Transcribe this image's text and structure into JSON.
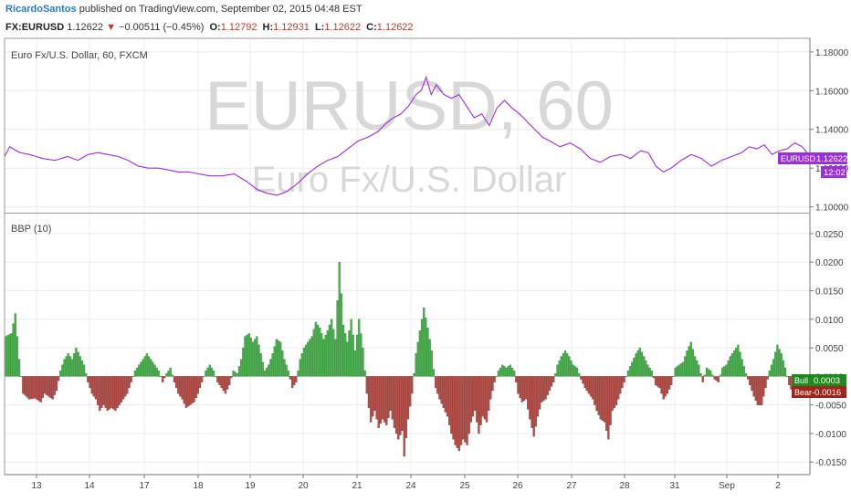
{
  "header": {
    "author": "RicardoSantos",
    "published_text": "published on TradingView.com, September 02, 2015 04:48 EST"
  },
  "quote": {
    "symbol": "FX:EURUSD",
    "price": "1.12622",
    "change": "−0.00511 (−0.45%)",
    "open_label": "O:",
    "open": "1.12792",
    "high_label": "H:",
    "high": "1.12931",
    "low_label": "L:",
    "low": "1.12622",
    "close_label": "C:",
    "close": "1.12622"
  },
  "colors": {
    "price_line": "#9b30d9",
    "bull": "#4caf50",
    "bull_edge": "#2e7d32",
    "bear": "#b5524d",
    "bear_edge": "#7b2a26",
    "grid": "#ececec",
    "border": "#9a9a9a"
  },
  "chart_data": [
    {
      "type": "line",
      "title": "Euro Fx/U.S. Dollar, 60, FXCM",
      "watermark_symbol": "EURUSD, 60",
      "watermark_name": "Euro Fx/U.S. Dollar",
      "series": [
        {
          "name": "EURUSD",
          "values": []
        }
      ],
      "last_label": "EURUSD",
      "last_value": "1.12622",
      "last_time": "12:02",
      "ylim": [
        1.097,
        1.187
      ],
      "y_ticks": [
        "1.18000",
        "1.16000",
        "1.14000",
        "1.12000",
        "1.10000"
      ],
      "y_tick_values": [
        1.18,
        1.16,
        1.14,
        1.12,
        1.1
      ],
      "anchors": [
        [
          0,
          1.126
        ],
        [
          2,
          1.131
        ],
        [
          6,
          1.128
        ],
        [
          10,
          1.127
        ],
        [
          15,
          1.125
        ],
        [
          20,
          1.124
        ],
        [
          25,
          1.126
        ],
        [
          29,
          1.124
        ],
        [
          33,
          1.127
        ],
        [
          37,
          1.128
        ],
        [
          41,
          1.127
        ],
        [
          45,
          1.126
        ],
        [
          49,
          1.124
        ],
        [
          53,
          1.121
        ],
        [
          57,
          1.12
        ],
        [
          61,
          1.12
        ],
        [
          65,
          1.119
        ],
        [
          69,
          1.118
        ],
        [
          73,
          1.118
        ],
        [
          77,
          1.117
        ],
        [
          81,
          1.116
        ],
        [
          86,
          1.116
        ],
        [
          91,
          1.117
        ],
        [
          96,
          1.113
        ],
        [
          100,
          1.109
        ],
        [
          104,
          1.107
        ],
        [
          108,
          1.106
        ],
        [
          112,
          1.108
        ],
        [
          116,
          1.112
        ],
        [
          120,
          1.117
        ],
        [
          124,
          1.121
        ],
        [
          128,
          1.124
        ],
        [
          132,
          1.126
        ],
        [
          136,
          1.13
        ],
        [
          140,
          1.134
        ],
        [
          144,
          1.136
        ],
        [
          148,
          1.139
        ],
        [
          151,
          1.143
        ],
        [
          154,
          1.146
        ],
        [
          157,
          1.148
        ],
        [
          160,
          1.152
        ],
        [
          163,
          1.158
        ],
        [
          165,
          1.16
        ],
        [
          167,
          1.167
        ],
        [
          169,
          1.158
        ],
        [
          171,
          1.163
        ],
        [
          174,
          1.158
        ],
        [
          177,
          1.156
        ],
        [
          180,
          1.158
        ],
        [
          183,
          1.152
        ],
        [
          186,
          1.146
        ],
        [
          189,
          1.148
        ],
        [
          192,
          1.142
        ],
        [
          195,
          1.151
        ],
        [
          198,
          1.155
        ],
        [
          201,
          1.151
        ],
        [
          204,
          1.148
        ],
        [
          207,
          1.144
        ],
        [
          210,
          1.14
        ],
        [
          213,
          1.136
        ],
        [
          216,
          1.134
        ],
        [
          220,
          1.131
        ],
        [
          224,
          1.133
        ],
        [
          228,
          1.13
        ],
        [
          232,
          1.125
        ],
        [
          236,
          1.123
        ],
        [
          240,
          1.126
        ],
        [
          244,
          1.127
        ],
        [
          248,
          1.125
        ],
        [
          252,
          1.129
        ],
        [
          255,
          1.128
        ],
        [
          258,
          1.121
        ],
        [
          261,
          1.118
        ],
        [
          264,
          1.12
        ],
        [
          268,
          1.124
        ],
        [
          272,
          1.127
        ],
        [
          276,
          1.125
        ],
        [
          280,
          1.121
        ],
        [
          284,
          1.124
        ],
        [
          288,
          1.126
        ],
        [
          292,
          1.128
        ],
        [
          295,
          1.131
        ],
        [
          298,
          1.13
        ],
        [
          301,
          1.132
        ],
        [
          304,
          1.127
        ],
        [
          307,
          1.129
        ],
        [
          310,
          1.13
        ],
        [
          313,
          1.133
        ],
        [
          316,
          1.131
        ],
        [
          319,
          1.126
        ]
      ]
    },
    {
      "type": "bar",
      "title": "BBP (10)",
      "series": [
        {
          "name": "Bull",
          "sign": "positive"
        },
        {
          "name": "Bear",
          "sign": "negative"
        }
      ],
      "bull_label": "Bull",
      "bull_value": "0.0003",
      "bear_label": "Bear",
      "bear_value": "-0.0016",
      "ylim": [
        -0.0172,
        0.0285
      ],
      "y_ticks": [
        "0.0250",
        "0.0200",
        "0.0150",
        "0.0100",
        "0.0050",
        "0.0000",
        "-0.0050",
        "-0.0100",
        "-0.0150"
      ],
      "y_tick_values": [
        0.025,
        0.02,
        0.015,
        0.01,
        0.005,
        0.0,
        -0.005,
        -0.01,
        -0.015
      ],
      "anchors": [
        [
          0,
          0.007
        ],
        [
          3,
          0.0075
        ],
        [
          5,
          0.011
        ],
        [
          7,
          0.003
        ],
        [
          9,
          -0.003
        ],
        [
          12,
          -0.004
        ],
        [
          15,
          -0.0038
        ],
        [
          18,
          -0.0045
        ],
        [
          20,
          -0.003
        ],
        [
          22,
          -0.0035
        ],
        [
          24,
          -0.004
        ],
        [
          26,
          -0.0025
        ],
        [
          28,
          0.001
        ],
        [
          30,
          0.003
        ],
        [
          32,
          0.004
        ],
        [
          34,
          0.003
        ],
        [
          36,
          0.005
        ],
        [
          38,
          0.0035
        ],
        [
          40,
          0.002
        ],
        [
          42,
          -0.001
        ],
        [
          44,
          -0.003
        ],
        [
          46,
          -0.004
        ],
        [
          48,
          -0.006
        ],
        [
          50,
          -0.005
        ],
        [
          52,
          -0.006
        ],
        [
          54,
          -0.0055
        ],
        [
          56,
          -0.006
        ],
        [
          58,
          -0.005
        ],
        [
          60,
          -0.004
        ],
        [
          62,
          -0.003
        ],
        [
          64,
          -0.001
        ],
        [
          66,
          0.001
        ],
        [
          68,
          0.002
        ],
        [
          70,
          0.003
        ],
        [
          72,
          0.004
        ],
        [
          74,
          0.003
        ],
        [
          76,
          0.002
        ],
        [
          78,
          0.001
        ],
        [
          80,
          -0.001
        ],
        [
          82,
          0.0005
        ],
        [
          84,
          0.0015
        ],
        [
          86,
          -0.001
        ],
        [
          88,
          -0.003
        ],
        [
          90,
          -0.004
        ],
        [
          92,
          -0.0055
        ],
        [
          94,
          -0.005
        ],
        [
          96,
          -0.0045
        ],
        [
          98,
          -0.003
        ],
        [
          100,
          -0.001
        ],
        [
          102,
          0.001
        ],
        [
          104,
          0.002
        ],
        [
          106,
          0.001
        ],
        [
          108,
          -0.001
        ],
        [
          110,
          -0.002
        ],
        [
          112,
          -0.003
        ],
        [
          114,
          -0.0015
        ],
        [
          116,
          0.001
        ],
        [
          118,
          0.0005
        ],
        [
          120,
          0.003
        ],
        [
          122,
          0.007
        ],
        [
          124,
          0.0075
        ],
        [
          126,
          0.006
        ],
        [
          128,
          0.007
        ],
        [
          130,
          0.004
        ],
        [
          132,
          0.001
        ],
        [
          134,
          0.002
        ],
        [
          136,
          0.004
        ],
        [
          138,
          0.0065
        ],
        [
          140,
          0.006
        ],
        [
          142,
          0.003
        ],
        [
          144,
          0.001
        ],
        [
          146,
          -0.002
        ],
        [
          148,
          -0.001
        ],
        [
          150,
          0.003
        ],
        [
          152,
          0.005
        ],
        [
          154,
          0.006
        ],
        [
          156,
          0.007
        ],
        [
          158,
          0.0095
        ],
        [
          160,
          0.0085
        ],
        [
          162,
          0.0065
        ],
        [
          164,
          0.008
        ],
        [
          166,
          0.01
        ],
        [
          168,
          0.0065
        ],
        [
          170,
          0.02
        ],
        [
          172,
          0.009
        ],
        [
          174,
          0.006
        ],
        [
          176,
          0.01
        ],
        [
          178,
          0.0045
        ],
        [
          180,
          0.01
        ],
        [
          182,
          0.005
        ],
        [
          184,
          -0.003
        ],
        [
          186,
          -0.008
        ],
        [
          188,
          -0.006
        ],
        [
          190,
          -0.009
        ],
        [
          192,
          -0.0075
        ],
        [
          194,
          -0.0085
        ],
        [
          196,
          -0.006
        ],
        [
          198,
          -0.009
        ],
        [
          200,
          -0.011
        ],
        [
          202,
          -0.0095
        ],
        [
          203,
          -0.014
        ],
        [
          205,
          -0.0075
        ],
        [
          207,
          -0.003
        ],
        [
          209,
          0.004
        ],
        [
          211,
          0.008
        ],
        [
          213,
          0.012
        ],
        [
          215,
          0.0085
        ],
        [
          217,
          0.0045
        ],
        [
          219,
          -0.002
        ],
        [
          221,
          -0.004
        ],
        [
          223,
          -0.0055
        ],
        [
          225,
          -0.007
        ],
        [
          227,
          -0.01
        ],
        [
          229,
          -0.012
        ],
        [
          231,
          -0.013
        ],
        [
          233,
          -0.011
        ],
        [
          235,
          -0.012
        ],
        [
          237,
          -0.008
        ],
        [
          239,
          -0.006
        ],
        [
          241,
          -0.01
        ],
        [
          243,
          -0.007
        ],
        [
          245,
          -0.008
        ],
        [
          247,
          -0.004
        ],
        [
          249,
          -0.001
        ],
        [
          251,
          0.001
        ],
        [
          253,
          0.002
        ],
        [
          255,
          0.0015
        ],
        [
          257,
          0.002
        ],
        [
          259,
          0.001
        ],
        [
          261,
          -0.003
        ],
        [
          263,
          -0.0045
        ],
        [
          265,
          -0.004
        ],
        [
          267,
          -0.0075
        ],
        [
          269,
          -0.0105
        ],
        [
          271,
          -0.007
        ],
        [
          273,
          -0.0045
        ],
        [
          275,
          -0.004
        ],
        [
          277,
          -0.0025
        ],
        [
          279,
          -0.001
        ],
        [
          281,
          0.002
        ],
        [
          283,
          0.0035
        ],
        [
          285,
          0.0045
        ],
        [
          287,
          0.0035
        ],
        [
          289,
          0.002
        ],
        [
          291,
          0.0015
        ],
        [
          293,
          -0.0005
        ],
        [
          295,
          -0.002
        ],
        [
          297,
          -0.003
        ],
        [
          299,
          -0.004
        ],
        [
          301,
          -0.006
        ],
        [
          303,
          -0.0075
        ],
        [
          305,
          -0.008
        ],
        [
          307,
          -0.011
        ],
        [
          309,
          -0.006
        ],
        [
          311,
          -0.005
        ],
        [
          313,
          -0.003
        ],
        [
          315,
          -0.001
        ],
        [
          317,
          0.001
        ],
        [
          319,
          0.0025
        ],
        [
          321,
          0.004
        ],
        [
          323,
          0.005
        ],
        [
          325,
          0.0035
        ],
        [
          327,
          0.002
        ],
        [
          329,
          0.001
        ],
        [
          331,
          -0.0015
        ],
        [
          333,
          -0.002
        ],
        [
          335,
          -0.004
        ],
        [
          337,
          -0.003
        ],
        [
          339,
          -0.0015
        ],
        [
          341,
          0.0015
        ],
        [
          343,
          0.002
        ],
        [
          345,
          0.0025
        ],
        [
          347,
          0.0045
        ],
        [
          349,
          0.006
        ],
        [
          351,
          0.0035
        ],
        [
          353,
          0.002
        ],
        [
          355,
          -0.001
        ],
        [
          357,
          0.0015
        ],
        [
          359,
          0.001
        ],
        [
          361,
          -0.0005
        ],
        [
          363,
          -0.001
        ],
        [
          365,
          0.0015
        ],
        [
          367,
          0.002
        ],
        [
          369,
          0.0035
        ],
        [
          371,
          0.0045
        ],
        [
          373,
          0.0055
        ],
        [
          375,
          0.003
        ],
        [
          377,
          0.0005
        ],
        [
          379,
          -0.0015
        ],
        [
          381,
          -0.0035
        ],
        [
          383,
          -0.005
        ],
        [
          385,
          -0.005
        ],
        [
          387,
          -0.002
        ],
        [
          389,
          0.001
        ],
        [
          391,
          0.003
        ],
        [
          393,
          0.0055
        ],
        [
          395,
          0.004
        ],
        [
          397,
          0.0015
        ],
        [
          399,
          -0.0015
        ],
        [
          401,
          -0.003
        ],
        [
          403,
          -0.0025
        ],
        [
          405,
          -0.002
        ],
        [
          407,
          -0.001
        ],
        [
          409,
          0.0003
        ]
      ]
    }
  ],
  "x_axis": {
    "ticks": [
      "13",
      "14",
      "17",
      "18",
      "19",
      "20",
      "21",
      "24",
      "25",
      "26",
      "27",
      "28",
      "31",
      "Sep",
      "2"
    ]
  }
}
